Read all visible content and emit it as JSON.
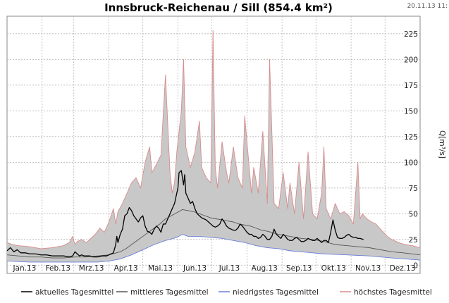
{
  "chart_data": {
    "type": "area",
    "title": "Innsbruck-Reichenau / Sill (854.4 km²)",
    "timestamp": "20.11.13 11:",
    "ylabel": "Q[m³/s]",
    "ylim": [
      -8,
      242
    ],
    "yticks": [
      0,
      25,
      50,
      75,
      100,
      125,
      150,
      175,
      200,
      225
    ],
    "xlim": [
      0,
      365
    ],
    "months": [
      "Jan.13",
      "Feb.13",
      "Mrz.13",
      "Apr.13",
      "Mai.13",
      "Jun.13",
      "Jul.13",
      "Aug.13",
      "Sep.13",
      "Okt.13",
      "Nov.13",
      "Dez.13"
    ],
    "month_starts": [
      0,
      31,
      59,
      90,
      120,
      151,
      181,
      212,
      243,
      273,
      304,
      334,
      365
    ],
    "grid": true,
    "legend_position": "bottom",
    "legend": [
      {
        "label": "aktuelles Tagesmittel",
        "color": "#000000"
      },
      {
        "label": "mittleres Tagesmittel",
        "color": "#555555"
      },
      {
        "label": "niedrigstes Tagesmittel",
        "color": "#6a7fd6"
      },
      {
        "label": "höchstes Tagesmittel",
        "color": "#d98c8c"
      }
    ],
    "series": [
      {
        "name": "höchstes Tagesmittel",
        "color": "#d98c8c",
        "x": [
          0,
          5,
          10,
          20,
          30,
          40,
          50,
          55,
          58,
          60,
          62,
          66,
          70,
          74,
          78,
          82,
          86,
          90,
          94,
          96,
          98,
          102,
          106,
          110,
          114,
          118,
          122,
          126,
          128,
          132,
          136,
          140,
          144,
          146,
          148,
          150,
          154,
          156,
          158,
          162,
          166,
          170,
          172,
          176,
          180,
          182,
          184,
          186,
          190,
          194,
          196,
          200,
          204,
          208,
          210,
          214,
          216,
          218,
          222,
          226,
          230,
          232,
          236,
          240,
          244,
          248,
          250,
          254,
          258,
          262,
          266,
          270,
          274,
          278,
          280,
          282,
          286,
          290,
          294,
          298,
          302,
          306,
          310,
          312,
          314,
          318,
          322,
          326,
          330,
          336,
          340,
          346,
          352,
          358,
          365
        ],
        "values": [
          22,
          20,
          19,
          18,
          16,
          17,
          19,
          22,
          28,
          20,
          23,
          25,
          22,
          26,
          30,
          36,
          32,
          42,
          55,
          40,
          52,
          60,
          70,
          80,
          85,
          75,
          100,
          115,
          90,
          98,
          107,
          185,
          90,
          70,
          80,
          110,
          150,
          200,
          115,
          95,
          110,
          140,
          95,
          85,
          80,
          228,
          95,
          75,
          120,
          90,
          80,
          115,
          85,
          75,
          145,
          95,
          70,
          95,
          70,
          130,
          60,
          200,
          60,
          55,
          90,
          55,
          80,
          50,
          100,
          45,
          110,
          50,
          45,
          70,
          115,
          55,
          45,
          60,
          50,
          52,
          48,
          40,
          100,
          45,
          50,
          45,
          42,
          40,
          35,
          28,
          25,
          22,
          20,
          19,
          17
        ]
      },
      {
        "name": "niedrigstes Tagesmittel",
        "color": "#6a7fd6",
        "x": [
          0,
          20,
          40,
          60,
          80,
          90,
          100,
          110,
          120,
          130,
          140,
          150,
          155,
          160,
          170,
          180,
          190,
          200,
          210,
          220,
          230,
          240,
          250,
          260,
          270,
          280,
          300,
          320,
          340,
          365
        ],
        "values": [
          4,
          3,
          3,
          3,
          3,
          4,
          6,
          10,
          15,
          20,
          24,
          27,
          30,
          28,
          28,
          27,
          26,
          24,
          22,
          19,
          17,
          16,
          14,
          13,
          12,
          11,
          10,
          9,
          7,
          5
        ]
      },
      {
        "name": "mittleres Tagesmittel",
        "color": "#555555",
        "x": [
          0,
          10,
          20,
          30,
          40,
          50,
          60,
          70,
          80,
          90,
          100,
          105,
          110,
          115,
          120,
          125,
          130,
          135,
          140,
          145,
          150,
          155,
          160,
          165,
          170,
          175,
          180,
          185,
          190,
          195,
          200,
          205,
          210,
          215,
          220,
          225,
          230,
          240,
          250,
          260,
          270,
          280,
          290,
          300,
          310,
          320,
          330,
          340,
          350,
          365
        ],
        "values": [
          10,
          9,
          8,
          8,
          7,
          7,
          8,
          8,
          9,
          10,
          13,
          16,
          20,
          24,
          28,
          32,
          36,
          40,
          45,
          48,
          51,
          54,
          53,
          52,
          50,
          48,
          46,
          45,
          44,
          43,
          42,
          40,
          39,
          38,
          36,
          34,
          33,
          30,
          28,
          26,
          25,
          23,
          20,
          19,
          18,
          17,
          15,
          13,
          12,
          10
        ]
      },
      {
        "name": "aktuelles Tagesmittel",
        "color": "#000000",
        "x": [
          0,
          3,
          6,
          9,
          12,
          16,
          20,
          25,
          30,
          35,
          40,
          45,
          50,
          55,
          58,
          60,
          62,
          64,
          66,
          68,
          70,
          73,
          76,
          80,
          84,
          88,
          92,
          94,
          96,
          97,
          98,
          100,
          102,
          104,
          106,
          108,
          110,
          112,
          114,
          116,
          118,
          120,
          122,
          124,
          126,
          128,
          130,
          132,
          134,
          136,
          138,
          140,
          142,
          144,
          146,
          148,
          150,
          151,
          152,
          154,
          156,
          157,
          158,
          160,
          162,
          164,
          166,
          168,
          170,
          172,
          174,
          176,
          178,
          180,
          182,
          184,
          186,
          188,
          190,
          192,
          194,
          196,
          198,
          200,
          202,
          204,
          206,
          208,
          210,
          212,
          214,
          216,
          218,
          220,
          222,
          224,
          226,
          228,
          230,
          232,
          234,
          236,
          238,
          240,
          242,
          244,
          246,
          248,
          250,
          252,
          254,
          256,
          258,
          260,
          262,
          264,
          266,
          268,
          270,
          272,
          274,
          276,
          278,
          280,
          282,
          284,
          286,
          288,
          290,
          292,
          294,
          296,
          298,
          300,
          302,
          304,
          306,
          308,
          310,
          312,
          315
        ],
        "values": [
          14,
          17,
          13,
          15,
          12,
          12,
          11,
          11,
          10,
          10,
          9,
          9,
          9,
          8,
          9,
          13,
          11,
          9,
          10,
          9,
          9,
          9,
          8,
          8,
          9,
          9,
          11,
          12,
          20,
          28,
          22,
          30,
          35,
          48,
          50,
          56,
          53,
          48,
          45,
          42,
          46,
          48,
          38,
          33,
          32,
          30,
          35,
          38,
          36,
          32,
          40,
          40,
          45,
          50,
          55,
          60,
          70,
          75,
          90,
          92,
          78,
          88,
          70,
          65,
          60,
          62,
          55,
          50,
          48,
          46,
          45,
          44,
          42,
          40,
          38,
          37,
          38,
          40,
          45,
          42,
          38,
          36,
          35,
          34,
          34,
          36,
          40,
          38,
          35,
          32,
          30,
          30,
          28,
          28,
          26,
          27,
          30,
          28,
          25,
          25,
          28,
          35,
          30,
          28,
          26,
          30,
          28,
          25,
          24,
          24,
          26,
          27,
          25,
          23,
          23,
          24,
          26,
          25,
          24,
          24,
          26,
          24,
          22,
          24,
          24,
          22,
          32,
          44,
          34,
          27,
          26,
          26,
          27,
          29,
          30,
          28,
          27,
          27,
          26,
          26,
          25
        ]
      }
    ]
  }
}
